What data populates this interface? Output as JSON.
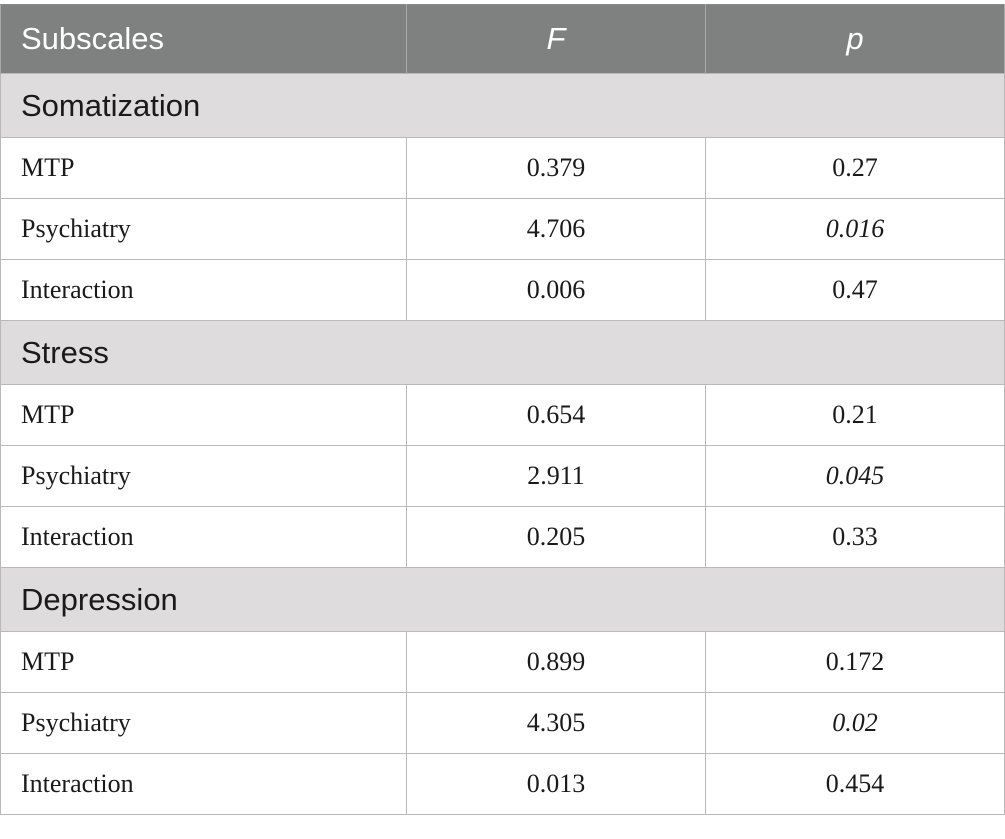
{
  "table": {
    "headers": {
      "subscales": "Subscales",
      "f": "F",
      "p": "p"
    },
    "groups": [
      {
        "name": "Somatization",
        "rows": [
          {
            "label": "MTP",
            "f": "0.379",
            "p": "0.27"
          },
          {
            "label": "Psychiatry",
            "f": "4.706",
            "p": "0.016"
          },
          {
            "label": "Interaction",
            "f": "0.006",
            "p": "0.47"
          }
        ]
      },
      {
        "name": "Stress",
        "rows": [
          {
            "label": "MTP",
            "f": "0.654",
            "p": "0.21"
          },
          {
            "label": "Psychiatry",
            "f": "2.911",
            "p": "0.045"
          },
          {
            "label": "Interaction",
            "f": "0.205",
            "p": "0.33"
          }
        ]
      },
      {
        "name": "Depression",
        "rows": [
          {
            "label": "MTP",
            "f": "0.899",
            "p": "0.172"
          },
          {
            "label": "Psychiatry",
            "f": "4.305",
            "p": "0.02"
          },
          {
            "label": "Interaction",
            "f": "0.013",
            "p": "0.454"
          }
        ]
      }
    ]
  }
}
